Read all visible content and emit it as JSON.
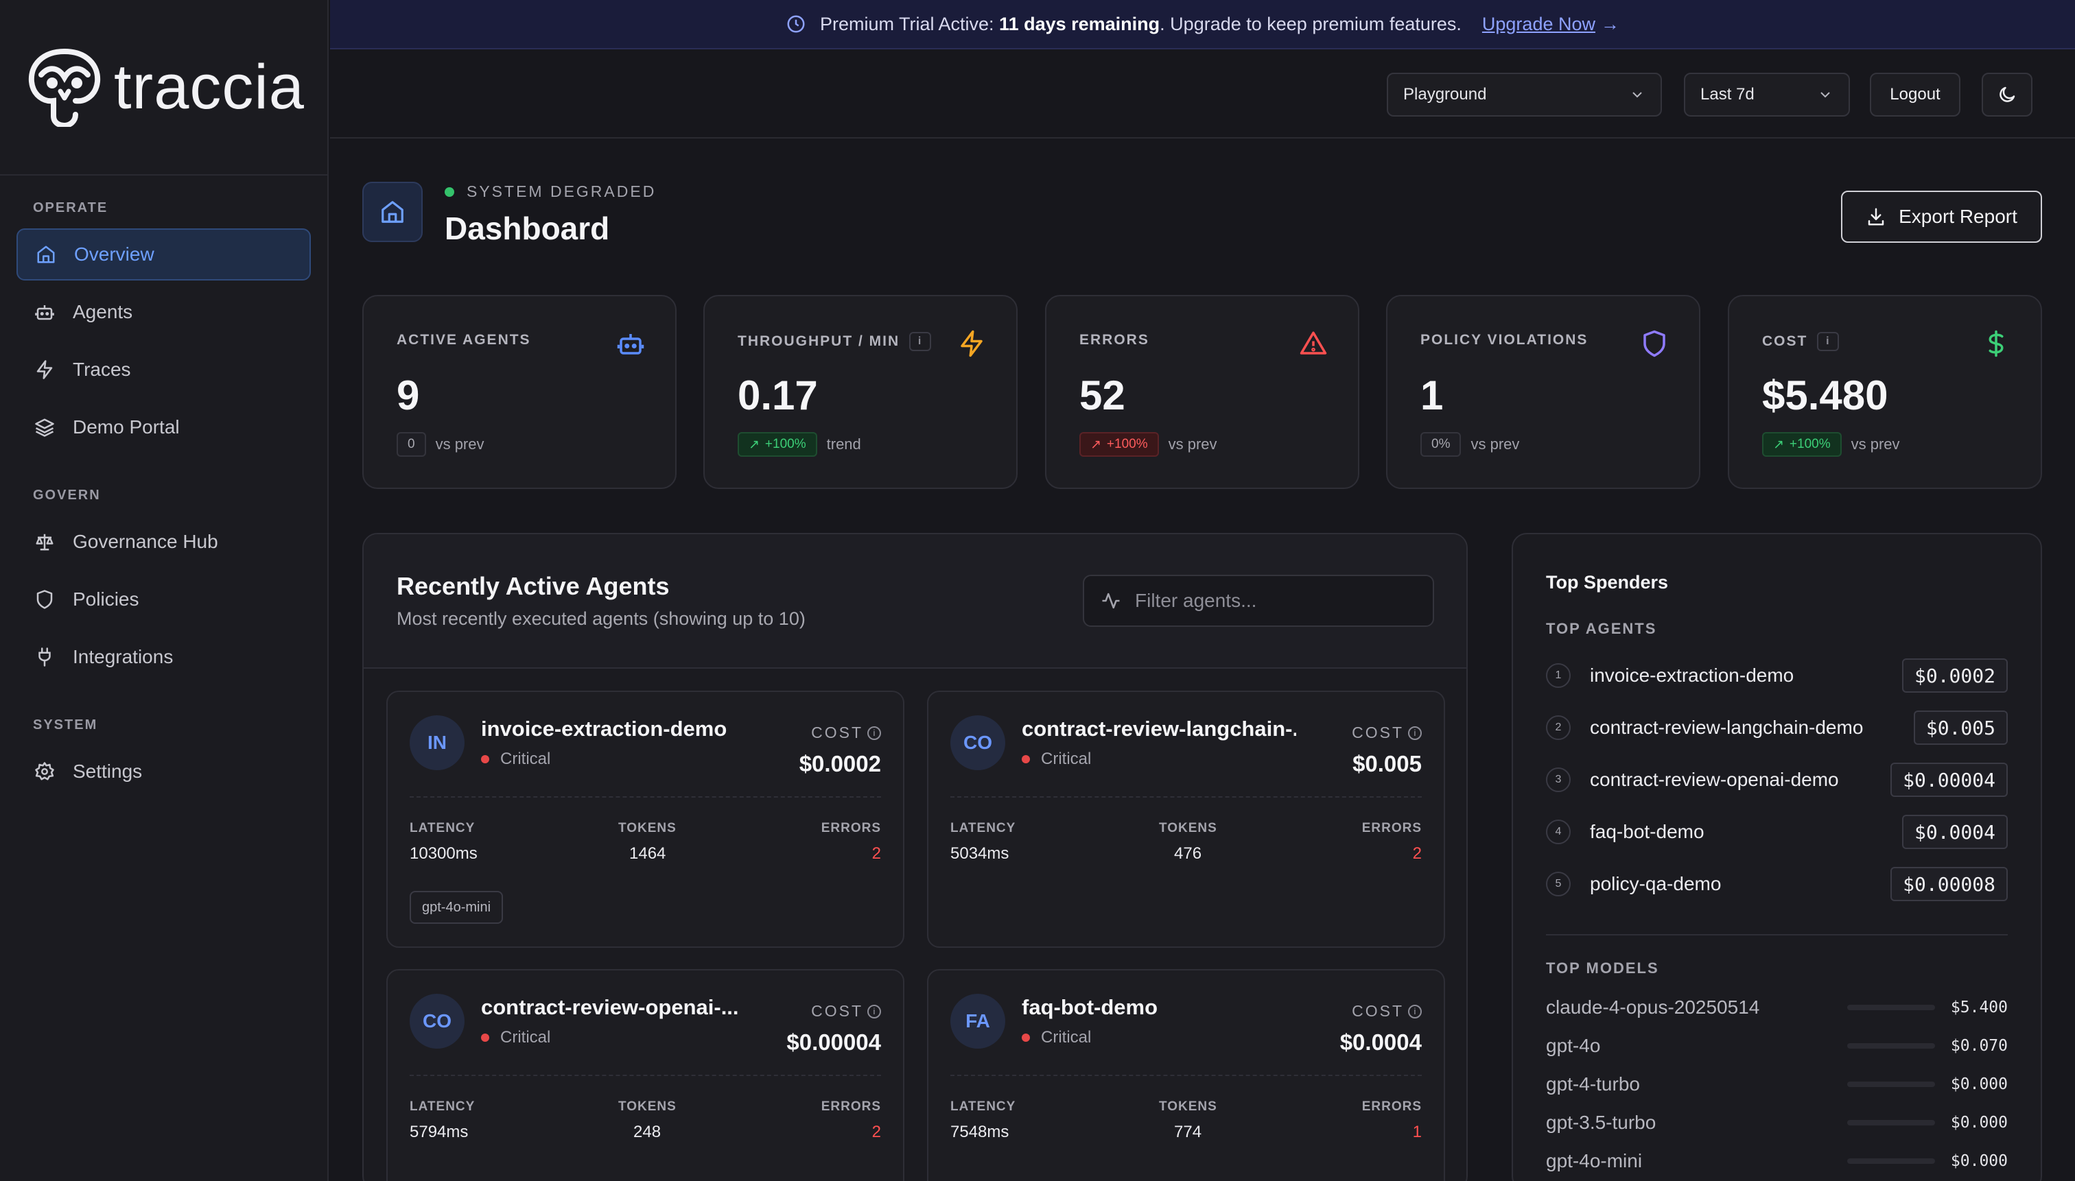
{
  "brand": {
    "name": "traccia"
  },
  "sidebar": {
    "sections": [
      {
        "heading": "OPERATE",
        "items": [
          {
            "label": "Overview",
            "icon": "home-icon",
            "active": true
          },
          {
            "label": "Agents",
            "icon": "bot-icon"
          },
          {
            "label": "Traces",
            "icon": "bolt-icon"
          },
          {
            "label": "Demo Portal",
            "icon": "layers-icon"
          }
        ]
      },
      {
        "heading": "GOVERN",
        "items": [
          {
            "label": "Governance Hub",
            "icon": "scale-icon"
          },
          {
            "label": "Policies",
            "icon": "shield-icon"
          },
          {
            "label": "Integrations",
            "icon": "plug-icon"
          }
        ]
      },
      {
        "heading": "SYSTEM",
        "items": [
          {
            "label": "Settings",
            "icon": "gear-icon"
          }
        ]
      }
    ]
  },
  "banner": {
    "prefix": "Premium Trial Active: ",
    "remaining": "11 days remaining",
    "suffix": ". Upgrade to keep premium features.",
    "cta": "Upgrade Now"
  },
  "topbar": {
    "project_select": "Playground",
    "range_select": "Last 7d",
    "logout": "Logout"
  },
  "header": {
    "status": "SYSTEM DEGRADED",
    "title": "Dashboard",
    "export": "Export Report"
  },
  "kpis": [
    {
      "label": "ACTIVE AGENTS",
      "value": "9",
      "pill": "0",
      "pill_style": "neutral",
      "note": "vs prev",
      "icon": "bot-icon",
      "icon_color": "#5b8cff",
      "info": false
    },
    {
      "label": "THROUGHPUT / MIN",
      "value": "0.17",
      "pill": "+100%",
      "pill_style": "green",
      "note": "trend",
      "icon": "bolt-icon",
      "icon_color": "#f5a623",
      "info": true
    },
    {
      "label": "ERRORS",
      "value": "52",
      "pill": "+100%",
      "pill_style": "red",
      "note": "vs prev",
      "icon": "warning-icon",
      "icon_color": "#ff5050",
      "info": false
    },
    {
      "label": "POLICY VIOLATIONS",
      "value": "1",
      "pill": "0%",
      "pill_style": "neutral",
      "note": "vs prev",
      "icon": "shield-icon",
      "icon_color": "#8f7bff",
      "info": false
    },
    {
      "label": "COST",
      "value": "$5.480",
      "pill": "+100%",
      "pill_style": "green",
      "note": "vs prev",
      "icon": "dollar-icon",
      "icon_color": "#3ccf77",
      "info": true
    }
  ],
  "recent": {
    "title": "Recently Active Agents",
    "subtitle": "Most recently executed agents (showing up to 10)",
    "filter_placeholder": "Filter agents...",
    "cost_label": "COST",
    "metric_labels": {
      "latency": "LATENCY",
      "tokens": "TOKENS",
      "errors": "ERRORS"
    },
    "agents": [
      {
        "initials": "IN",
        "name": "invoice-extraction-demo",
        "severity": "Critical",
        "cost": "$0.0002",
        "latency": "10300ms",
        "tokens": "1464",
        "errors": "2",
        "model": "gpt-4o-mini"
      },
      {
        "initials": "CO",
        "name": "contract-review-langchain-...",
        "severity": "Critical",
        "cost": "$0.005",
        "latency": "5034ms",
        "tokens": "476",
        "errors": "2",
        "model": ""
      },
      {
        "initials": "CO",
        "name": "contract-review-openai-...",
        "severity": "Critical",
        "cost": "$0.00004",
        "latency": "5794ms",
        "tokens": "248",
        "errors": "2",
        "model": ""
      },
      {
        "initials": "FA",
        "name": "faq-bot-demo",
        "severity": "Critical",
        "cost": "$0.0004",
        "latency": "7548ms",
        "tokens": "774",
        "errors": "1",
        "model": ""
      }
    ]
  },
  "spenders": {
    "title": "Top Spenders",
    "agents_heading": "TOP AGENTS",
    "agents": [
      {
        "rank": "1",
        "name": "invoice-extraction-demo",
        "amount": "$0.0002"
      },
      {
        "rank": "2",
        "name": "contract-review-langchain-demo",
        "amount": "$0.005"
      },
      {
        "rank": "3",
        "name": "contract-review-openai-demo",
        "amount": "$0.00004"
      },
      {
        "rank": "4",
        "name": "faq-bot-demo",
        "amount": "$0.0004"
      },
      {
        "rank": "5",
        "name": "policy-qa-demo",
        "amount": "$0.00008"
      }
    ],
    "models_heading": "TOP MODELS",
    "models": [
      {
        "name": "claude-4-opus-20250514",
        "amount": "$5.400",
        "share": 1.0
      },
      {
        "name": "gpt-4o",
        "amount": "$0.070",
        "share": 0.013
      },
      {
        "name": "gpt-4-turbo",
        "amount": "$0.000",
        "share": 0
      },
      {
        "name": "gpt-3.5-turbo",
        "amount": "$0.000",
        "share": 0
      },
      {
        "name": "gpt-4o-mini",
        "amount": "$0.000",
        "share": 0
      }
    ]
  },
  "colors": {
    "accent": "#5b8cff",
    "critical": "#e84848",
    "ok": "#34c26b"
  }
}
